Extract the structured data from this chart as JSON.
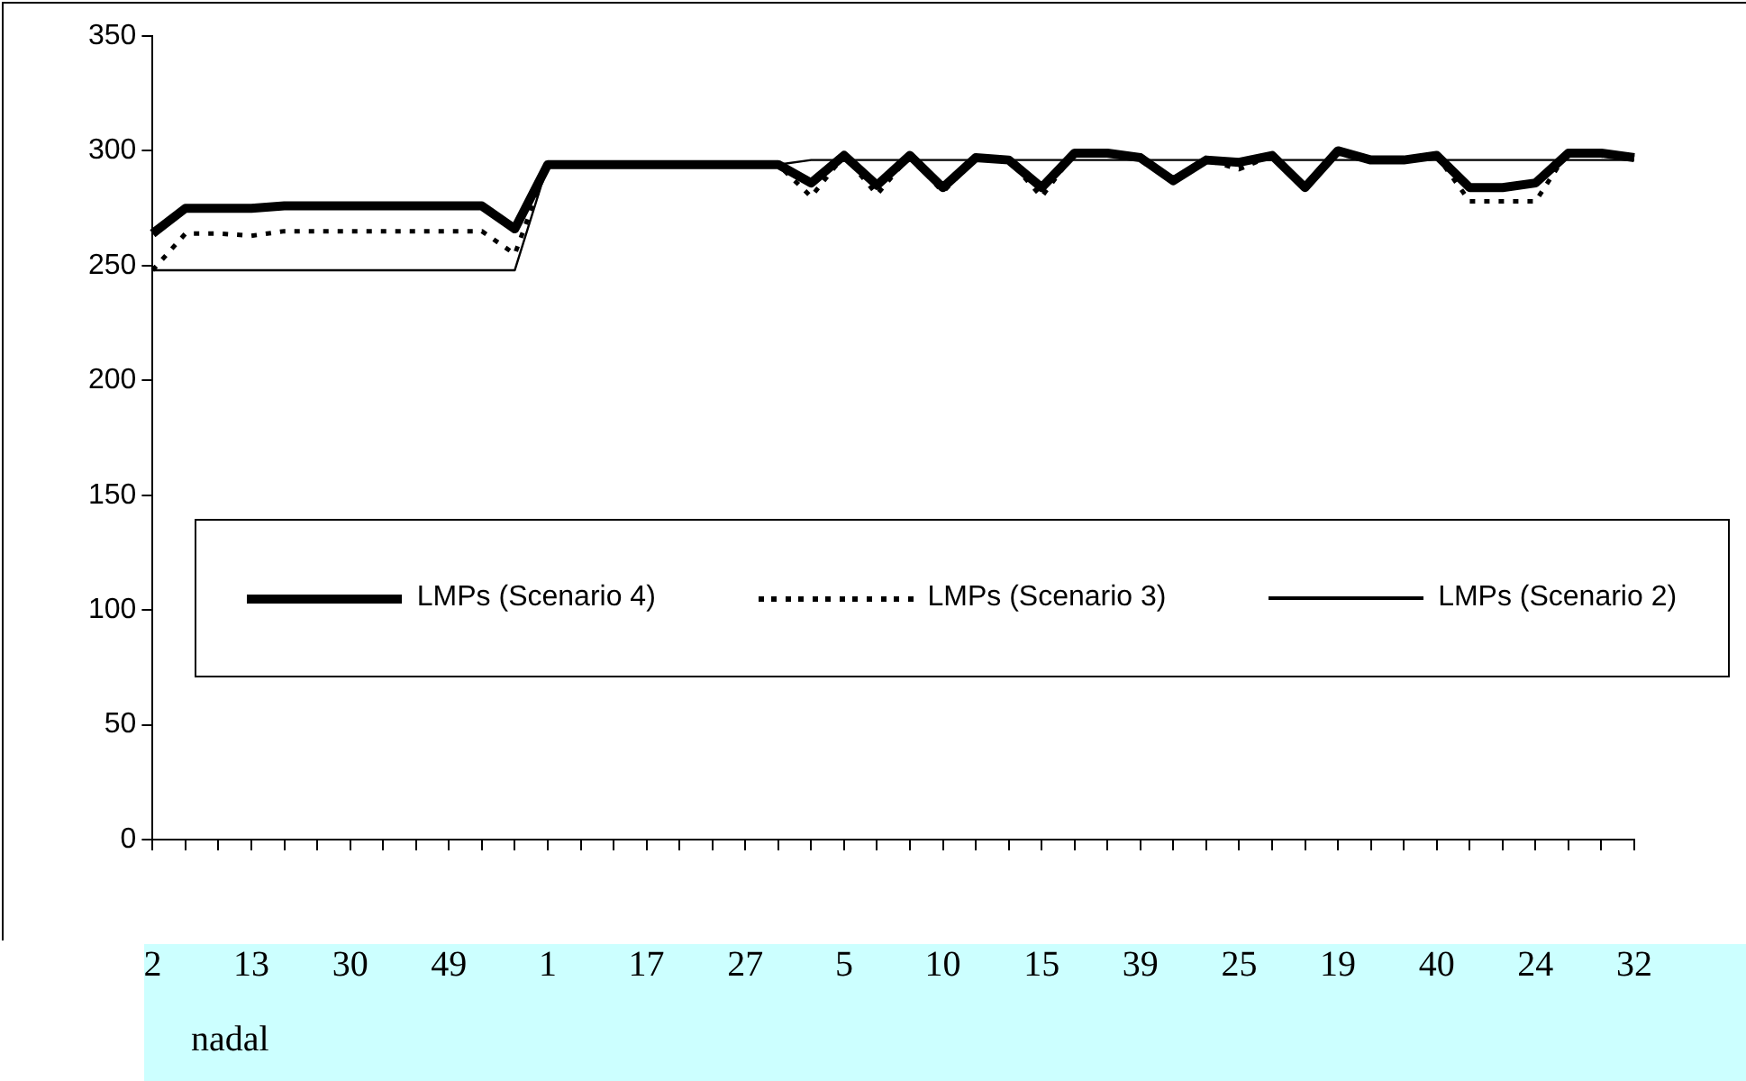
{
  "chart_data": {
    "type": "line",
    "categories": [
      "2",
      null,
      null,
      "13",
      null,
      null,
      "30",
      null,
      null,
      "49",
      null,
      null,
      "1",
      null,
      null,
      "17",
      null,
      null,
      "27",
      null,
      null,
      "5",
      null,
      null,
      "10",
      null,
      null,
      "15",
      null,
      null,
      "39",
      null,
      null,
      "25",
      null,
      null,
      "19",
      null,
      null,
      "40",
      null,
      null,
      "24",
      null,
      null,
      "32"
    ],
    "series": [
      {
        "name": "LMPs (Scenario 4)",
        "color": "#000000",
        "line_style": "solid",
        "values": [
          264,
          275,
          275,
          275,
          276,
          276,
          276,
          276,
          276,
          276,
          276,
          266,
          294,
          294,
          294,
          294,
          294,
          294,
          294,
          294,
          286,
          298,
          285,
          298,
          284,
          297,
          296,
          284,
          299,
          299,
          297,
          287,
          296,
          295,
          298,
          284,
          300,
          296,
          296,
          298,
          284,
          284,
          286,
          299,
          299,
          297
        ]
      },
      {
        "name": "LMPs (Scenario 3)",
        "color": "#000000",
        "line_style": "dotted",
        "values": [
          248,
          264,
          264,
          263,
          265,
          265,
          265,
          265,
          265,
          265,
          265,
          255,
          294,
          294,
          294,
          294,
          294,
          294,
          294,
          294,
          280,
          298,
          281,
          298,
          282,
          297,
          296,
          280,
          299,
          299,
          297,
          287,
          296,
          292,
          298,
          284,
          300,
          296,
          296,
          298,
          278,
          278,
          278,
          300,
          299,
          297
        ]
      },
      {
        "name": "LMPs (Scenario 2)",
        "color": "#000000",
        "line_style": "solid",
        "values": [
          248,
          248,
          248,
          248,
          248,
          248,
          248,
          248,
          248,
          248,
          248,
          248,
          294,
          294,
          294,
          294,
          294,
          294,
          294,
          294,
          296,
          296,
          296,
          296,
          296,
          296,
          296,
          296,
          296,
          296,
          296,
          296,
          296,
          296,
          296,
          296,
          296,
          296,
          296,
          296,
          296,
          296,
          296,
          296,
          296,
          296
        ]
      }
    ],
    "ylim": [
      0,
      350
    ],
    "yticks": [
      0,
      50,
      100,
      150,
      200,
      250,
      300,
      350
    ],
    "grid": false,
    "legend": "center",
    "marker": "none",
    "annotations": [
      "nadal"
    ]
  }
}
